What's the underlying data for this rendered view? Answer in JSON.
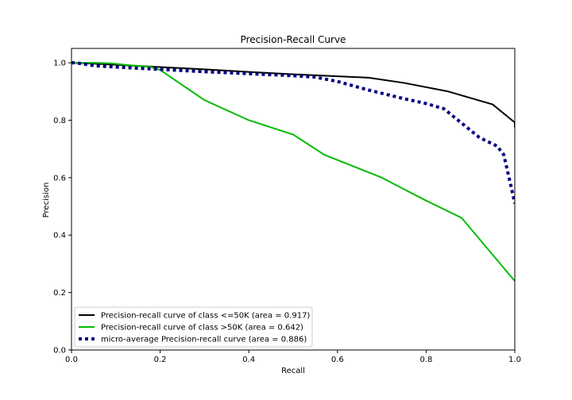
{
  "chart_data": {
    "type": "line",
    "title": "Precision-Recall Curve",
    "xlabel": "Recall",
    "ylabel": "Precision",
    "xlim": [
      0.0,
      1.0
    ],
    "ylim": [
      0.0,
      1.05
    ],
    "xticks": [
      "0.0",
      "0.2",
      "0.4",
      "0.6",
      "0.8",
      "1.0"
    ],
    "yticks": [
      "0.0",
      "0.2",
      "0.4",
      "0.6",
      "0.8",
      "1.0"
    ],
    "grid": false,
    "legend_position": "lower-left",
    "series": [
      {
        "name": "Precision-recall curve of class <=50K (area = 0.917)",
        "color": "#000000",
        "style": "solid",
        "x": [
          0.0,
          0.05,
          0.1,
          0.2,
          0.3,
          0.4,
          0.5,
          0.6,
          0.67,
          0.75,
          0.85,
          0.91,
          0.95,
          1.0,
          1.0
        ],
        "y": [
          1.0,
          0.997,
          0.993,
          0.985,
          0.977,
          0.968,
          0.96,
          0.953,
          0.948,
          0.93,
          0.9,
          0.873,
          0.855,
          0.792,
          0.775
        ]
      },
      {
        "name": "Precision-recall curve of class >50K (area = 0.642)",
        "color": "#00bb00",
        "style": "solid",
        "x": [
          0.0,
          0.05,
          0.09,
          0.12,
          0.18,
          0.2,
          0.3,
          0.4,
          0.5,
          0.57,
          0.7,
          0.8,
          0.88,
          1.0
        ],
        "y": [
          1.0,
          1.0,
          0.998,
          0.993,
          0.985,
          0.975,
          0.87,
          0.8,
          0.75,
          0.68,
          0.6,
          0.52,
          0.46,
          0.24
        ]
      },
      {
        "name": "micro-average Precision-recall curve (area = 0.886)",
        "color": "#000080",
        "style": "dotted",
        "x": [
          0.0,
          0.01,
          0.05,
          0.1,
          0.2,
          0.3,
          0.4,
          0.5,
          0.55,
          0.6,
          0.67,
          0.75,
          0.8,
          0.84,
          0.88,
          0.92,
          0.96,
          0.975,
          0.99,
          1.0
        ],
        "y": [
          1.0,
          1.0,
          0.99,
          0.985,
          0.977,
          0.969,
          0.962,
          0.955,
          0.95,
          0.935,
          0.905,
          0.875,
          0.858,
          0.84,
          0.79,
          0.74,
          0.71,
          0.68,
          0.58,
          0.51
        ]
      }
    ]
  }
}
